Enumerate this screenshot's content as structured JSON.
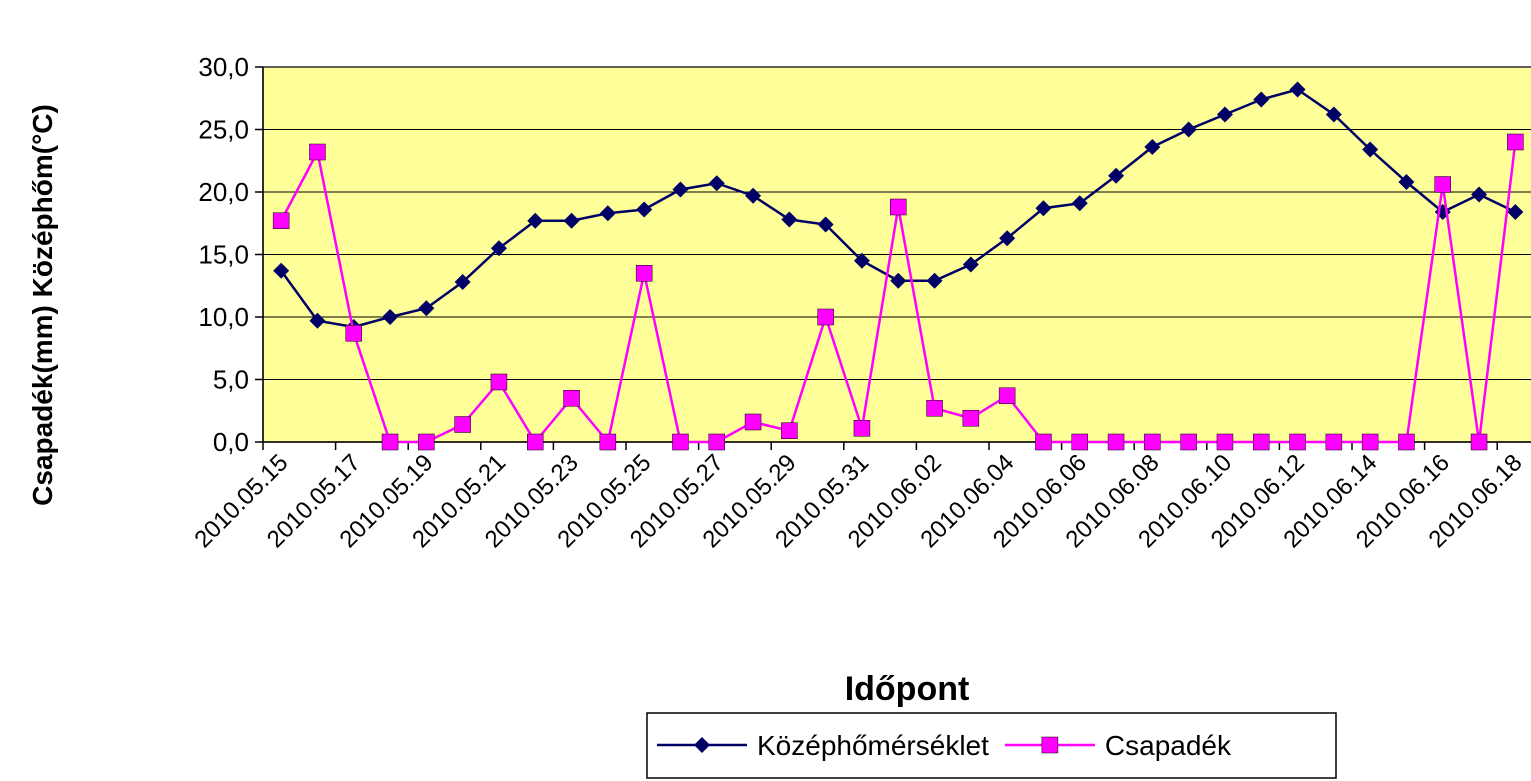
{
  "chart_data": {
    "type": "line",
    "xlabel": "Időpont",
    "ylabel": "Csapadék(mm)  Középhőm(°C)",
    "categories": [
      "2010.05.15",
      null,
      "2010.05.17",
      null,
      "2010.05.19",
      null,
      "2010.05.21",
      null,
      "2010.05.23",
      null,
      "2010.05.25",
      null,
      "2010.05.27",
      null,
      "2010.05.29",
      null,
      "2010.05.31",
      null,
      "2010.06.02",
      null,
      "2010.06.04",
      null,
      "2010.06.06",
      null,
      "2010.06.08",
      null,
      "2010.06.10",
      null,
      "2010.06.12",
      null,
      "2010.06.14",
      null,
      "2010.06.16",
      null,
      "2010.06.18"
    ],
    "series": [
      {
        "name": "Középhőmérséklet",
        "color": "#000066",
        "marker": "diamond",
        "values": [
          13.7,
          9.7,
          9.2,
          10.0,
          10.7,
          12.8,
          15.5,
          17.7,
          17.7,
          18.3,
          18.6,
          20.2,
          20.7,
          19.7,
          17.8,
          17.4,
          14.5,
          12.9,
          12.9,
          14.2,
          16.3,
          18.7,
          19.1,
          21.3,
          23.6,
          25.0,
          26.2,
          27.4,
          28.2,
          26.2,
          23.4,
          20.8,
          18.4,
          19.8,
          18.4
        ]
      },
      {
        "name": "Csapadék",
        "color": "#ff00ff",
        "marker": "square",
        "values": [
          17.7,
          23.2,
          8.7,
          0,
          0,
          1.4,
          4.8,
          0,
          3.5,
          0,
          13.5,
          0,
          0,
          1.6,
          0.9,
          10.0,
          1.1,
          18.8,
          2.7,
          1.9,
          3.7,
          0,
          0,
          0,
          0,
          0,
          0,
          0,
          0,
          0,
          0,
          0,
          20.6,
          0,
          24.0
        ]
      }
    ],
    "ylim": [
      0,
      30
    ],
    "yticks": [
      {
        "value": 0,
        "label": "0,0"
      },
      {
        "value": 5,
        "label": "5,0"
      },
      {
        "value": 10,
        "label": "10,0"
      },
      {
        "value": 15,
        "label": "15,0"
      },
      {
        "value": 20,
        "label": "20,0"
      },
      {
        "value": 25,
        "label": "25,0"
      },
      {
        "value": 30,
        "label": "30,0"
      }
    ],
    "grid": true,
    "legend": "bottom"
  }
}
